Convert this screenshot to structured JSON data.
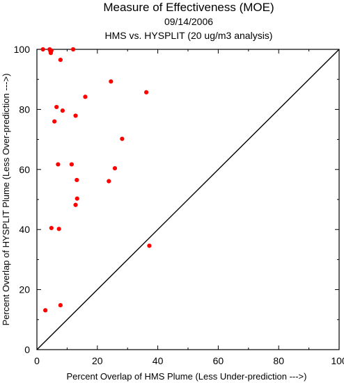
{
  "chart_data": {
    "type": "scatter",
    "title": "Measure of Effectiveness (MOE)",
    "subtitle": "09/14/2006",
    "subtitle2": "HMS vs. HYSPLIT  (20 ug/m3 analysis)",
    "xlabel": "Percent Overlap of HMS Plume (Less Under-prediction --->)",
    "ylabel": "Percent Overlap of HYSPLIT Plume (Less Over-prediction --->)",
    "xlim": [
      0,
      100
    ],
    "ylim": [
      0,
      100
    ],
    "xticks": [
      "0",
      "20",
      "40",
      "60",
      "80",
      "100"
    ],
    "yticks": [
      "0",
      "20",
      "40",
      "60",
      "80",
      "100"
    ],
    "grid": false,
    "reference_line": "y = x",
    "marker_color": "#ff0000",
    "line_color": "#000000",
    "points": [
      {
        "x": 2.0,
        "y": 100.0
      },
      {
        "x": 4.2,
        "y": 100.0
      },
      {
        "x": 4.5,
        "y": 99.3
      },
      {
        "x": 4.6,
        "y": 98.8
      },
      {
        "x": 4.8,
        "y": 99.6
      },
      {
        "x": 7.8,
        "y": 96.5
      },
      {
        "x": 12.0,
        "y": 100.0
      },
      {
        "x": 24.5,
        "y": 89.3
      },
      {
        "x": 36.2,
        "y": 85.7
      },
      {
        "x": 16.0,
        "y": 84.2
      },
      {
        "x": 6.5,
        "y": 80.8
      },
      {
        "x": 8.5,
        "y": 79.6
      },
      {
        "x": 12.8,
        "y": 77.9
      },
      {
        "x": 5.8,
        "y": 76.0
      },
      {
        "x": 28.2,
        "y": 70.2
      },
      {
        "x": 7.0,
        "y": 61.7
      },
      {
        "x": 11.5,
        "y": 61.7
      },
      {
        "x": 25.8,
        "y": 60.4
      },
      {
        "x": 13.2,
        "y": 56.5
      },
      {
        "x": 23.8,
        "y": 56.1
      },
      {
        "x": 13.3,
        "y": 50.3
      },
      {
        "x": 12.8,
        "y": 48.2
      },
      {
        "x": 4.8,
        "y": 40.5
      },
      {
        "x": 7.3,
        "y": 40.2
      },
      {
        "x": 37.2,
        "y": 34.6
      },
      {
        "x": 7.8,
        "y": 14.8
      },
      {
        "x": 2.8,
        "y": 13.1
      }
    ]
  }
}
